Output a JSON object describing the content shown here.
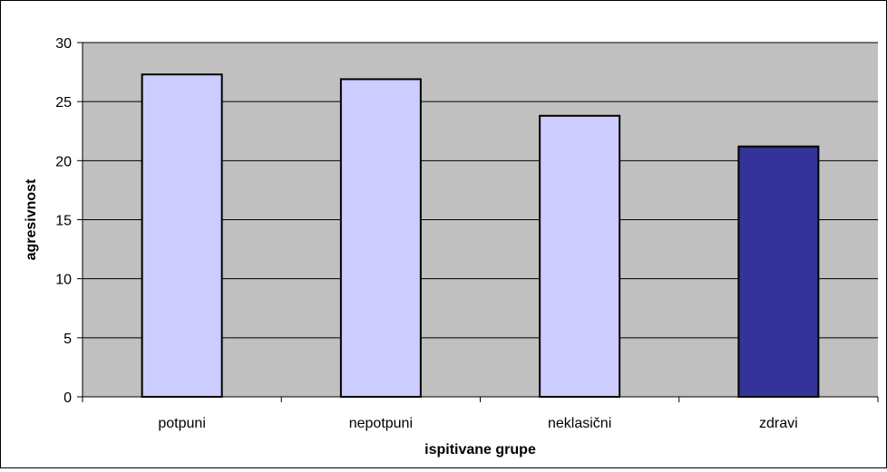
{
  "chart_data": {
    "type": "bar",
    "title": "",
    "xlabel": "ispitivane grupe",
    "ylabel": "agresivnost",
    "categories": [
      "potpuni",
      "nepotpuni",
      "neklasični",
      "zdravi"
    ],
    "values": [
      27.3,
      26.9,
      23.8,
      21.2
    ],
    "ylim": [
      0,
      30
    ],
    "yticks": [
      0,
      5,
      10,
      15,
      20,
      25,
      30
    ],
    "ytick_labels": [
      "0",
      "5",
      "10",
      "15",
      "20",
      "25",
      "30"
    ],
    "grid": true,
    "legend": "none",
    "colors": {
      "plot_background": "#c0c0c0",
      "bar_default": "#ccccff",
      "bar_highlight": "#333399",
      "gridline": "#000000",
      "bar_outline": "#000000"
    },
    "bar_colors": [
      "#ccccff",
      "#ccccff",
      "#ccccff",
      "#333399"
    ]
  }
}
